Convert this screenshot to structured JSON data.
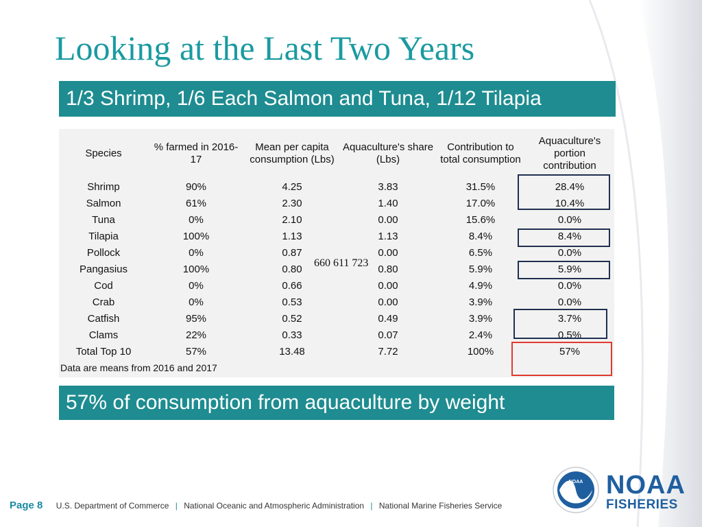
{
  "slide": {
    "title": "Looking at the Last Two Years",
    "top_banner": "1/3 Shrimp, 1/6 Each Salmon and Tuna, 1/12 Tilapia",
    "bottom_banner": "57% of consumption from aquaculture by weight",
    "overlay_number": "660 611 723"
  },
  "table": {
    "headers": [
      "Species",
      "% farmed in 2016-17",
      "Mean per capita consumption (Lbs)",
      "Aquaculture's share (Lbs)",
      "Contribution to total consumption",
      "Aquaculture's portion contribution"
    ],
    "rows": [
      [
        "Shrimp",
        "90%",
        "4.25",
        "3.83",
        "31.5%",
        "28.4%"
      ],
      [
        "Salmon",
        "61%",
        "2.30",
        "1.40",
        "17.0%",
        "10.4%"
      ],
      [
        "Tuna",
        "0%",
        "2.10",
        "0.00",
        "15.6%",
        "0.0%"
      ],
      [
        "Tilapia",
        "100%",
        "1.13",
        "1.13",
        "8.4%",
        "8.4%"
      ],
      [
        "Pollock",
        "0%",
        "0.87",
        "0.00",
        "6.5%",
        "0.0%"
      ],
      [
        "Pangasius",
        "100%",
        "0.80",
        "0.80",
        "5.9%",
        "5.9%"
      ],
      [
        "Cod",
        "0%",
        "0.66",
        "0.00",
        "4.9%",
        "0.0%"
      ],
      [
        "Crab",
        "0%",
        "0.53",
        "0.00",
        "3.9%",
        "0.0%"
      ],
      [
        "Catfish",
        "95%",
        "0.52",
        "0.49",
        "3.9%",
        "3.7%"
      ],
      [
        "Clams",
        "22%",
        "0.33",
        "0.07",
        "2.4%",
        "0.5%"
      ],
      [
        "Total Top 10",
        "57%",
        "13.48",
        "7.72",
        "100%",
        "57%"
      ]
    ],
    "note": "Data are means from 2016 and 2017"
  },
  "footer": {
    "page": "Page 8",
    "items": [
      "U.S. Department of Commerce",
      "National Oceanic and Atmospheric Administration",
      "National Marine Fisheries Service"
    ],
    "separator": "|"
  },
  "logo": {
    "emblem_text": "NOAA",
    "line1": "NOAA",
    "line2": "FISHERIES",
    "colors": {
      "blue": "#1f5fa0",
      "teal": "#1e8c90"
    }
  }
}
